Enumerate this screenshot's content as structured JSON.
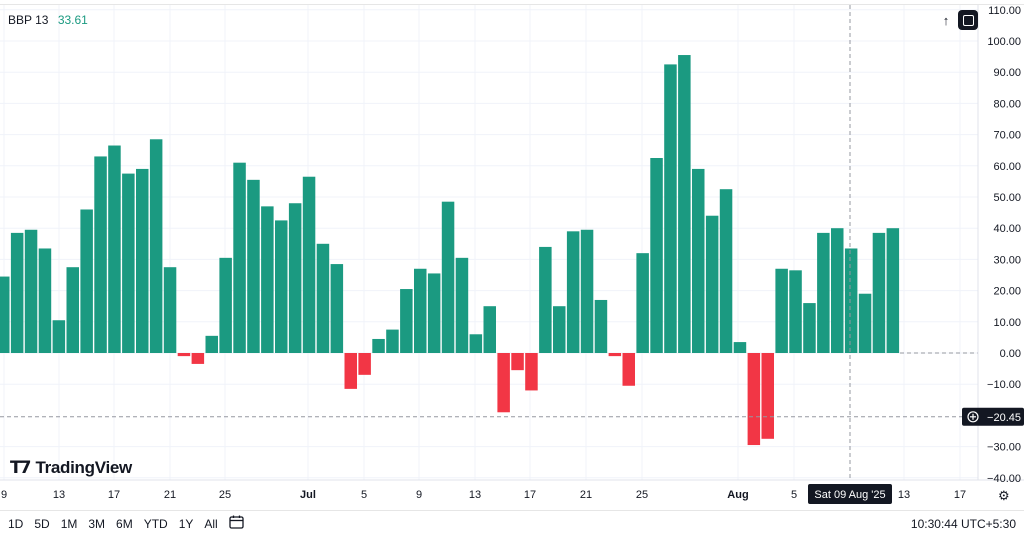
{
  "legend": {
    "name": "BBP 13",
    "value": "33.61",
    "value_color": "#1b9a81"
  },
  "toolbar": {
    "up_icon": "arrow-up-icon",
    "fullscreen_icon": "fullscreen-icon"
  },
  "logo": {
    "text": "TradingView"
  },
  "ranges": [
    "1D",
    "5D",
    "1M",
    "3M",
    "6M",
    "YTD",
    "1Y",
    "All"
  ],
  "clock": "10:30:44 UTC+5:30",
  "crosshair": {
    "date_label": "Sat 09 Aug '25",
    "price_label": "−20.45"
  },
  "colors": {
    "positive": "#1b9a81",
    "negative": "#f23645"
  },
  "chart_data": {
    "type": "bar",
    "series": [
      {
        "values": [
          24.5,
          38.5,
          39.5,
          33.5,
          10.5,
          27.5,
          46,
          63,
          66.5,
          57.5,
          59,
          68.5,
          27.5,
          -1,
          -3.5,
          5.5,
          30.5,
          61,
          55.5,
          47,
          42.5,
          48,
          56.5,
          35,
          28.5,
          -11.5,
          -7,
          4.5,
          7.5,
          20.5,
          27,
          25.5,
          48.5,
          30.5,
          6,
          15,
          -19,
          -5.5,
          -12,
          34,
          15,
          39,
          39.5,
          17,
          -1,
          -10.5,
          32,
          62.5,
          92.5,
          95.5,
          59,
          44,
          52.5,
          3.5,
          -29.5,
          -27.5,
          27,
          26.5,
          16,
          38.5,
          40,
          33.5,
          19,
          38.5,
          40
        ]
      }
    ],
    "x_ticks": [
      "9",
      "13",
      "17",
      "21",
      "25",
      "Jul",
      "5",
      "9",
      "13",
      "17",
      "21",
      "25",
      "Aug",
      "5",
      "13",
      "17"
    ],
    "bold_x_ticks": [
      "Jul",
      "Aug"
    ],
    "y_ticks": [
      "110.00",
      "100.00",
      "90.00",
      "80.00",
      "70.00",
      "60.00",
      "50.00",
      "40.00",
      "30.00",
      "20.00",
      "10.00",
      "0.00",
      "−10.00",
      "−30.00",
      "−40.00"
    ],
    "ylim": [
      -42,
      112
    ],
    "zero_line": true,
    "grid": true
  }
}
